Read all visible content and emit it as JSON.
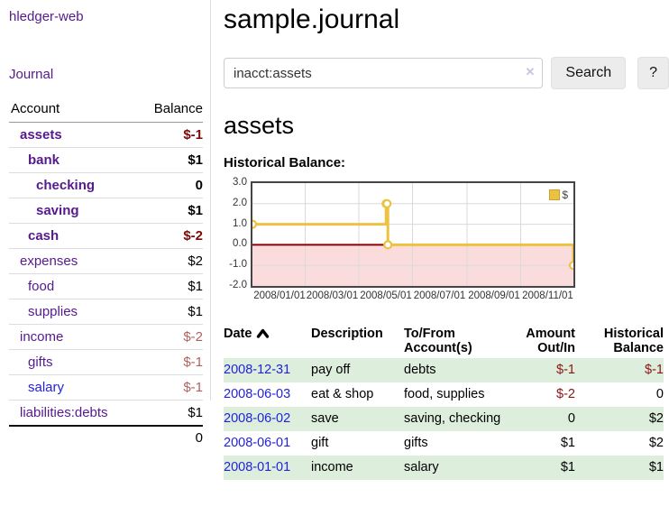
{
  "app": {
    "title": "hledger-web"
  },
  "sidebar": {
    "journal_label": "Journal",
    "accounts": {
      "headers": [
        "Account",
        "Balance"
      ],
      "rows": [
        {
          "name": "assets",
          "balance": "$-1"
        },
        {
          "name": "bank",
          "balance": "$1"
        },
        {
          "name": "checking",
          "balance": "0"
        },
        {
          "name": "saving",
          "balance": "$1"
        },
        {
          "name": "cash",
          "balance": "$-2"
        },
        {
          "name": "expenses",
          "balance": "$2"
        },
        {
          "name": "food",
          "balance": "$1"
        },
        {
          "name": "supplies",
          "balance": "$1"
        },
        {
          "name": "income",
          "balance": "$-2"
        },
        {
          "name": "gifts",
          "balance": "$-1"
        },
        {
          "name": "salary",
          "balance": "$-1"
        },
        {
          "name": "liabilities:debts",
          "balance": "$1"
        }
      ],
      "total": "0"
    }
  },
  "main": {
    "title": "sample.journal",
    "search": {
      "value": "inacct:assets",
      "clear_icon": "✕",
      "button_label": "Search",
      "help_label": "?"
    },
    "account_heading": "assets",
    "chart_label": "Historical Balance:"
  },
  "chart_data": {
    "type": "line",
    "step": true,
    "title": "Historical Balance",
    "legend": "$",
    "legend_position": "top-right",
    "grid": true,
    "x_range": [
      "2008-01-01",
      "2008-12-31"
    ],
    "ylim": [
      -2,
      3
    ],
    "y_ticks": [
      "3.0",
      "2.0",
      "1.0",
      "0.0",
      "-1.0",
      "-2.0"
    ],
    "x_ticks": [
      {
        "date": "2008-01-01",
        "label": "2008/01/01"
      },
      {
        "date": "2008-03-01",
        "label": "2008/03/01"
      },
      {
        "date": "2008-05-01",
        "label": "2008/05/01"
      },
      {
        "date": "2008-07-01",
        "label": "2008/07/01"
      },
      {
        "date": "2008-09-01",
        "label": "2008/09/01"
      },
      {
        "date": "2008-11-01",
        "label": "2008/11/01"
      }
    ],
    "series": [
      {
        "name": "$",
        "color": "#edc240",
        "points": [
          {
            "x": "2008-01-01",
            "y": 1
          },
          {
            "x": "2008-06-01",
            "y": 2
          },
          {
            "x": "2008-06-02",
            "y": 2
          },
          {
            "x": "2008-06-03",
            "y": 0
          },
          {
            "x": "2008-12-31",
            "y": -1
          }
        ]
      }
    ],
    "colors": {
      "negative_region": "#fbdcdc",
      "zero_line": "#8b0000",
      "border": "#454545",
      "gridline": "#d9d9d9",
      "series": "#edc240"
    }
  },
  "register": {
    "headers": [
      "Date",
      "Description",
      "To/From Account(s)",
      "Amount Out/In",
      "Historical Balance"
    ],
    "rows": [
      {
        "date": "2008-12-31",
        "description": "pay off",
        "accounts": "debts",
        "amount": "$-1",
        "balance": "$-1"
      },
      {
        "date": "2008-06-03",
        "description": "eat & shop",
        "accounts": "food, supplies",
        "amount": "$-2",
        "balance": "0"
      },
      {
        "date": "2008-06-02",
        "description": "save",
        "accounts": "saving, checking",
        "amount": "0",
        "balance": "$2"
      },
      {
        "date": "2008-06-01",
        "description": "gift",
        "accounts": "gifts",
        "amount": "$1",
        "balance": "$2"
      },
      {
        "date": "2008-01-01",
        "description": "income",
        "accounts": "salary",
        "amount": "$1",
        "balance": "$1"
      }
    ]
  }
}
